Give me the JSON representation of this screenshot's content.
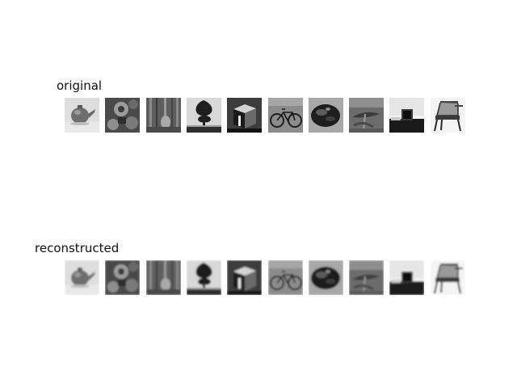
{
  "figure": {
    "rows": [
      {
        "key": "original",
        "label": "original",
        "images": [
          {
            "subject": "teapot"
          },
          {
            "subject": "flowers"
          },
          {
            "subject": "forest-floor"
          },
          {
            "subject": "tree"
          },
          {
            "subject": "box"
          },
          {
            "subject": "bicycle"
          },
          {
            "subject": "stone"
          },
          {
            "subject": "plant"
          },
          {
            "subject": "tv-monitor"
          },
          {
            "subject": "chair"
          }
        ]
      },
      {
        "key": "reconstructed",
        "label": "reconstructed",
        "images": [
          {
            "subject": "teapot"
          },
          {
            "subject": "flowers"
          },
          {
            "subject": "forest-floor"
          },
          {
            "subject": "tree"
          },
          {
            "subject": "box"
          },
          {
            "subject": "bicycle"
          },
          {
            "subject": "stone"
          },
          {
            "subject": "plant"
          },
          {
            "subject": "tv-monitor"
          },
          {
            "subject": "chair"
          }
        ]
      }
    ]
  }
}
